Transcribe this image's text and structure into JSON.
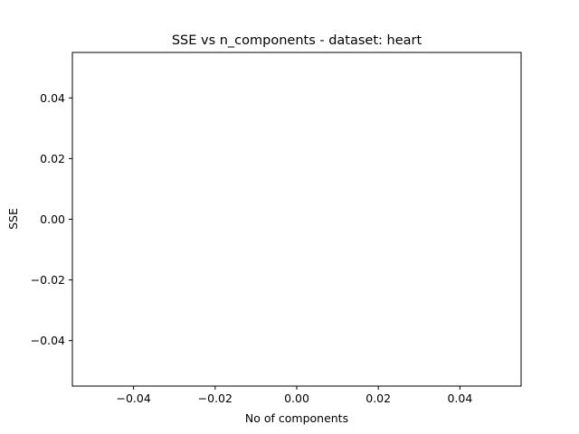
{
  "chart_data": {
    "type": "line",
    "title": "SSE vs n_components - dataset: heart",
    "xlabel": "No of components",
    "ylabel": "SSE",
    "x": [],
    "series": [],
    "xlim": [
      -0.055,
      0.055
    ],
    "ylim": [
      -0.055,
      0.055
    ],
    "xticks": [
      -0.04,
      -0.02,
      0.0,
      0.02,
      0.04
    ],
    "xtick_labels": [
      "−0.04",
      "−0.02",
      "0.00",
      "0.02",
      "0.04"
    ],
    "yticks": [
      -0.04,
      -0.02,
      0.0,
      0.02,
      0.04
    ],
    "ytick_labels": [
      "−0.04",
      "−0.02",
      "0.00",
      "0.02",
      "0.04"
    ],
    "grid": false,
    "legend": "none"
  }
}
